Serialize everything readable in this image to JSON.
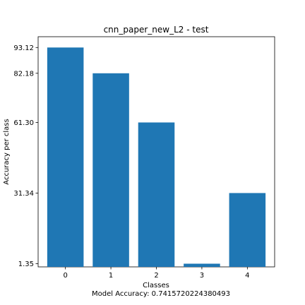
{
  "chart_data": {
    "type": "bar",
    "title": "cnn_paper_new_L2 - test",
    "xlabel": "Classes",
    "ylabel": "Accuracy per class",
    "caption": "Model Accuracy: 0.7415720224380493",
    "categories": [
      "0",
      "1",
      "2",
      "3",
      "4"
    ],
    "values": [
      93.12,
      82.18,
      61.3,
      1.35,
      31.34
    ],
    "yticks": [
      1.35,
      31.34,
      61.3,
      82.18,
      93.12
    ],
    "ytick_labels": [
      "1.35",
      "31.34",
      "61.30",
      "82.18",
      "93.12"
    ],
    "ylim": [
      0,
      97.7
    ],
    "grid": false,
    "bar_color": "#1f77b4"
  }
}
